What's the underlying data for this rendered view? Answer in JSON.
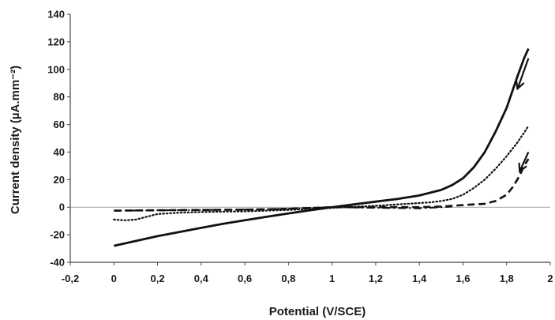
{
  "chart_data": {
    "type": "line",
    "title": "",
    "xlabel": "Potential (V/SCE)",
    "ylabel": "Current density (µA.mm⁻²)",
    "xlim": [
      -0.2,
      2
    ],
    "ylim": [
      -40,
      140
    ],
    "x_ticks": [
      -0.2,
      0,
      0.2,
      0.4,
      0.6,
      0.8,
      1,
      1.2,
      1.4,
      1.6,
      1.8,
      2
    ],
    "x_tick_labels": [
      "-0,2",
      "0",
      "0,2",
      "0,4",
      "0,6",
      "0,8",
      "1",
      "1,2",
      "1,4",
      "1,6",
      "1,8",
      "2"
    ],
    "y_ticks": [
      -40,
      -20,
      0,
      20,
      40,
      60,
      80,
      100,
      120,
      140
    ],
    "y_tick_labels": [
      "-40",
      "-20",
      "0",
      "20",
      "40",
      "60",
      "80",
      "100",
      "120",
      "140"
    ],
    "grid": false,
    "legend": "none",
    "series": [
      {
        "line_style": "solid",
        "color": "#111111",
        "x": [
          0,
          0.1,
          0.2,
          0.3,
          0.4,
          0.5,
          0.6,
          0.7,
          0.8,
          0.9,
          1.0,
          1.1,
          1.2,
          1.3,
          1.4,
          1.5,
          1.55,
          1.6,
          1.65,
          1.7,
          1.75,
          1.8,
          1.85,
          1.88,
          1.9
        ],
        "y": [
          -28,
          -24.5,
          -21,
          -18,
          -15,
          -12,
          -9.5,
          -7,
          -4.5,
          -2.2,
          0,
          2,
          4,
          6,
          8.5,
          12.5,
          16,
          21,
          29,
          40,
          55,
          72,
          95,
          108,
          115
        ]
      },
      {
        "line_style": "dotted",
        "color": "#111111",
        "x": [
          0,
          0.05,
          0.1,
          0.15,
          0.2,
          0.3,
          0.4,
          0.6,
          0.8,
          1.0,
          1.2,
          1.3,
          1.4,
          1.45,
          1.5,
          1.55,
          1.6,
          1.65,
          1.7,
          1.75,
          1.8,
          1.85,
          1.88,
          1.9
        ],
        "y": [
          -9,
          -9.5,
          -9,
          -7,
          -5,
          -4,
          -3.5,
          -3,
          -2,
          -0.5,
          1,
          2,
          3,
          3.5,
          4.5,
          6,
          9,
          14,
          20,
          28,
          37,
          47,
          54,
          59
        ]
      },
      {
        "line_style": "dashed",
        "color": "#111111",
        "x": [
          0,
          0.2,
          0.4,
          0.6,
          0.8,
          1.0,
          1.2,
          1.4,
          1.5,
          1.55,
          1.6,
          1.65,
          1.7,
          1.75,
          1.8,
          1.83,
          1.86,
          1.88,
          1.9
        ],
        "y": [
          -2.5,
          -2.2,
          -2,
          -1.8,
          -1.2,
          0,
          0,
          0,
          0.5,
          1,
          1.5,
          2,
          2.5,
          4.5,
          9,
          15,
          23,
          30,
          35
        ]
      },
      {
        "line_style": "dash-dot",
        "color": "#111111",
        "x": [
          0,
          0.2,
          0.4,
          0.6,
          0.8,
          1.0,
          1.2,
          1.4,
          1.5,
          1.55
        ],
        "y": [
          -2.5,
          -2.3,
          -2,
          -1.7,
          -1.2,
          0,
          -0.4,
          -0.8,
          0,
          0.5
        ]
      }
    ],
    "arrows": [
      {
        "from": [
          1.9,
          108
        ],
        "to": [
          1.85,
          86
        ]
      },
      {
        "from": [
          1.9,
          40
        ],
        "to": [
          1.86,
          26
        ]
      }
    ]
  }
}
